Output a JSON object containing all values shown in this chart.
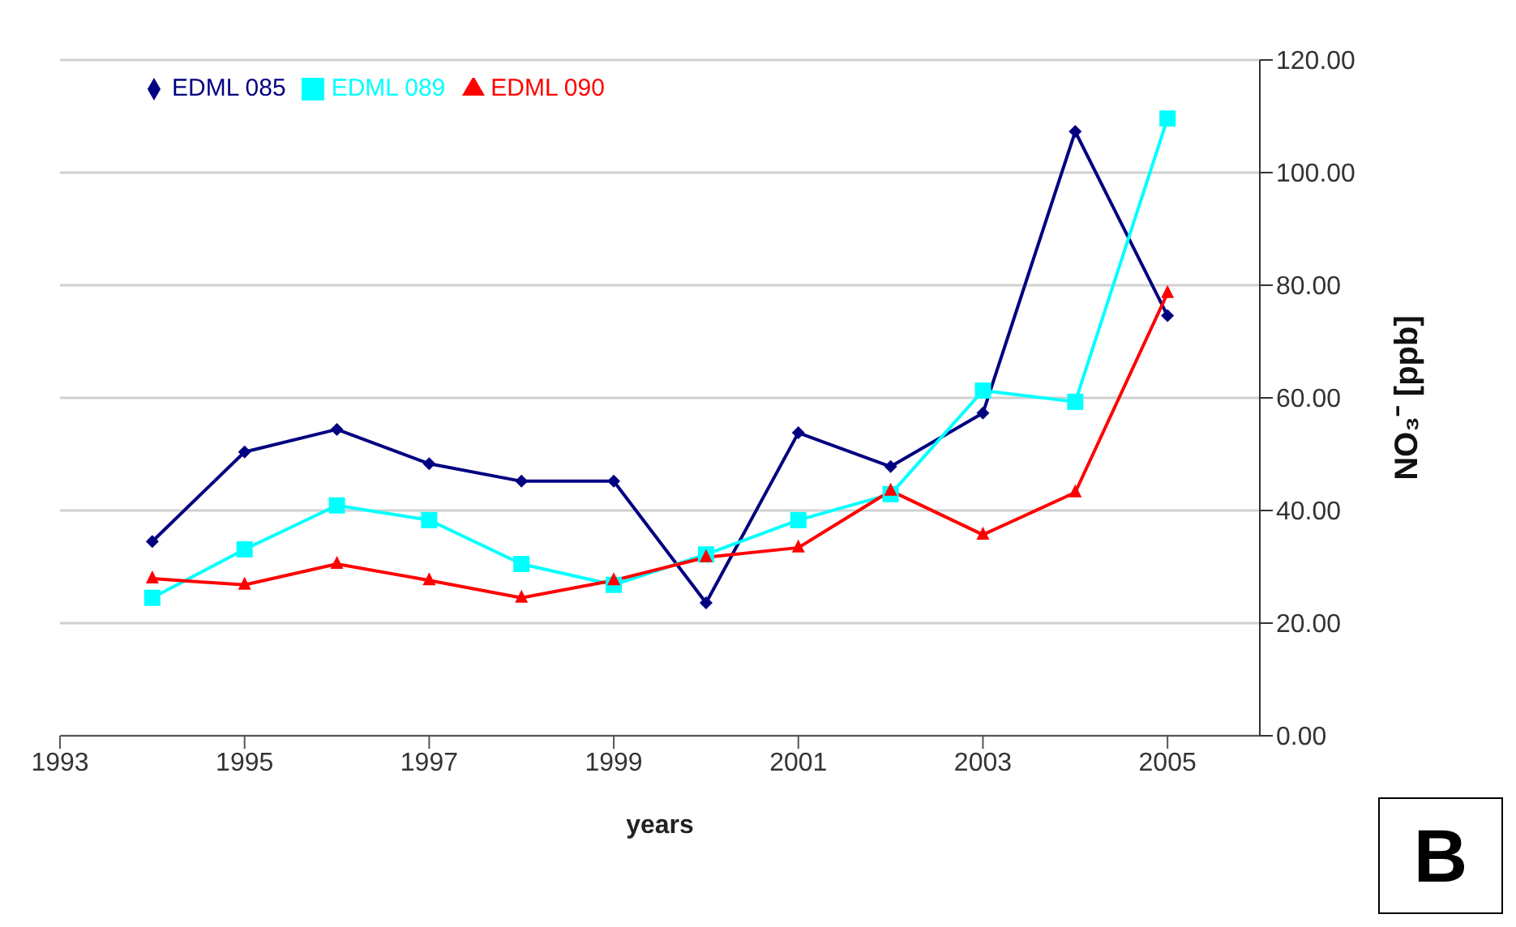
{
  "chart_data": {
    "type": "line",
    "xlabel": "years",
    "ylabel": "NO₃⁻ [ppb]",
    "x": [
      1994,
      1995,
      1996,
      1997,
      1998,
      1999,
      2000,
      2001,
      2002,
      2003,
      2004,
      2005
    ],
    "series": [
      {
        "name": "EDML 085",
        "color": "#000080",
        "marker": "diamond",
        "values": [
          34.5,
          50.4,
          54.4,
          48.3,
          45.2,
          45.2,
          23.6,
          53.8,
          47.8,
          57.3,
          107.3,
          74.6
        ]
      },
      {
        "name": "EDML 089",
        "color": "#00ffff",
        "marker": "square",
        "values": [
          24.5,
          33.1,
          40.9,
          38.3,
          30.5,
          26.8,
          32.2,
          38.3,
          42.9,
          61.3,
          59.3,
          109.6
        ]
      },
      {
        "name": "EDML 090",
        "color": "#ff0000",
        "marker": "triangle",
        "values": [
          27.9,
          26.8,
          30.5,
          27.6,
          24.5,
          27.6,
          31.7,
          33.4,
          43.5,
          35.7,
          43.2,
          78.6
        ]
      }
    ],
    "xlim": [
      1993,
      2006
    ],
    "xticks": [
      1993,
      1995,
      1997,
      1999,
      2001,
      2003,
      2005
    ],
    "ylim": [
      0,
      120
    ],
    "yticks": [
      {
        "value": 0,
        "label": "0.00"
      },
      {
        "value": 20,
        "label": "20.00"
      },
      {
        "value": 40,
        "label": "40.00"
      },
      {
        "value": 60,
        "label": "60.00"
      },
      {
        "value": 80,
        "label": "80.00"
      },
      {
        "value": 100,
        "label": "100.00"
      },
      {
        "value": 120,
        "label": "120.00"
      }
    ],
    "grid": "y",
    "legend": "top left",
    "annotations": [
      "B"
    ]
  }
}
